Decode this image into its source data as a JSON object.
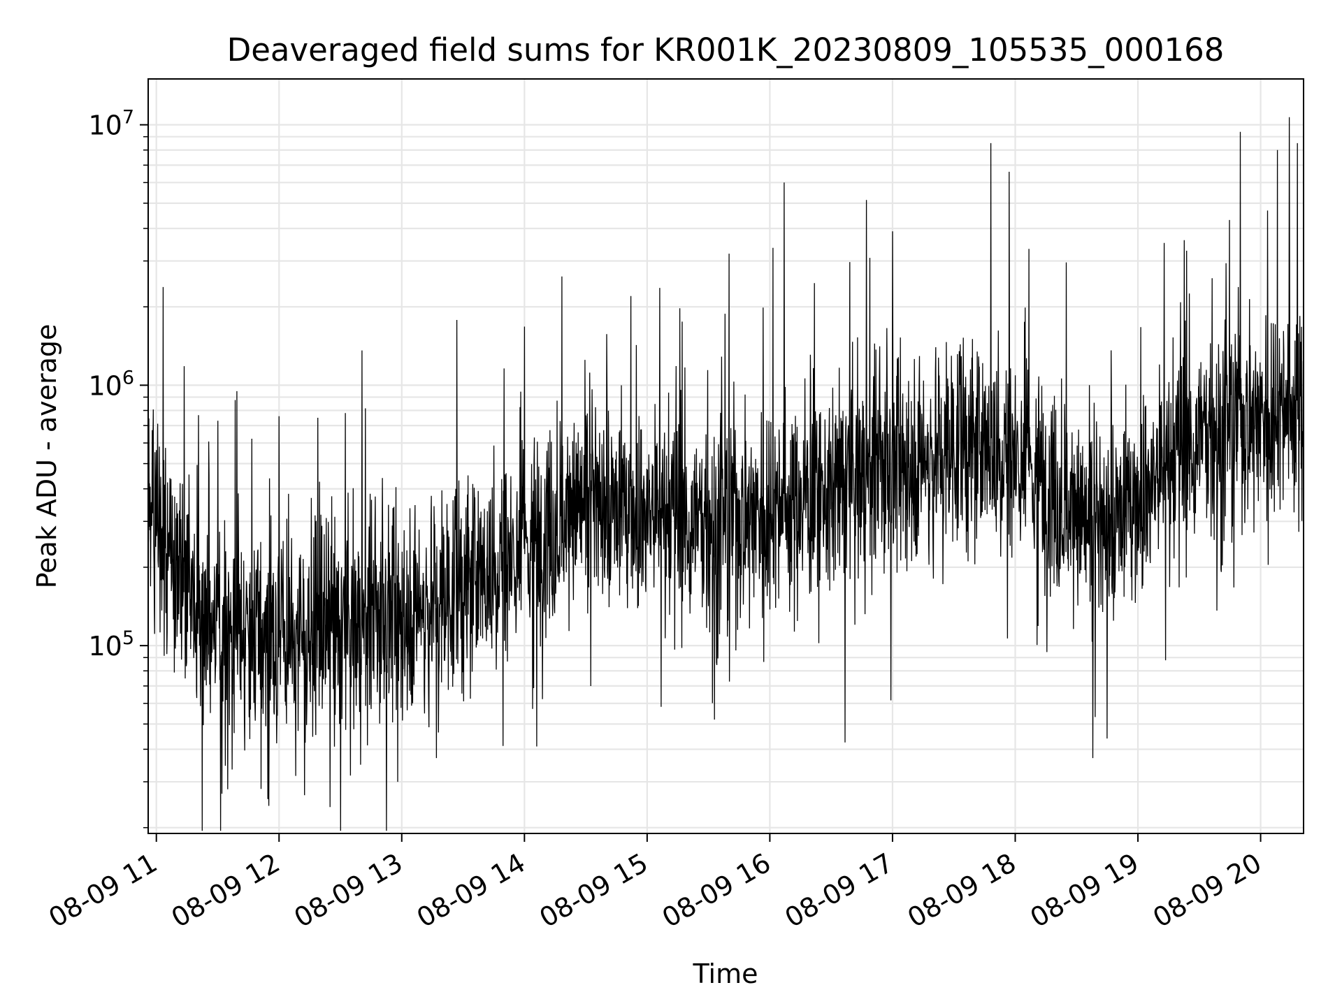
{
  "chart_data": {
    "type": "line",
    "title": "Deaveraged field sums for KR001K_20230809_105535_000168",
    "xlabel": "Time",
    "ylabel": "Peak ADU - average",
    "yscale": "log",
    "grid": true,
    "line_color": "#000000",
    "x_ticks": [
      "08-09 11",
      "08-09 12",
      "08-09 13",
      "08-09 14",
      "08-09 15",
      "08-09 16",
      "08-09 17",
      "08-09 18",
      "08-09 19",
      "08-09 20"
    ],
    "y_ticks": [
      {
        "base": "10",
        "exp": "5",
        "value": 100000
      },
      {
        "base": "10",
        "exp": "6",
        "value": 1000000
      },
      {
        "base": "10",
        "exp": "7",
        "value": 10000000
      }
    ],
    "xlim": [
      "2023-08-09 10:56",
      "2023-08-09 20:21"
    ],
    "ylim": [
      19000,
      15000000
    ],
    "series": [
      {
        "x_start": "2023-08-09 10:56",
        "x_end": "2023-08-09 20:21",
        "trend_knots": [
          {
            "t": "2023-08-09 10:56",
            "value": 270000
          },
          {
            "t": "2023-08-09 11:30",
            "value": 110000
          },
          {
            "t": "2023-08-09 12:30",
            "value": 110000
          },
          {
            "t": "2023-08-09 13:30",
            "value": 170000
          },
          {
            "t": "2023-08-09 14:30",
            "value": 350000
          },
          {
            "t": "2023-08-09 15:30",
            "value": 300000
          },
          {
            "t": "2023-08-09 16:30",
            "value": 400000
          },
          {
            "t": "2023-08-09 17:30",
            "value": 600000
          },
          {
            "t": "2023-08-09 18:00",
            "value": 550000
          },
          {
            "t": "2023-08-09 18:40",
            "value": 260000
          },
          {
            "t": "2023-08-09 19:30",
            "value": 650000
          },
          {
            "t": "2023-08-09 20:21",
            "value": 900000
          }
        ],
        "peaks": [
          {
            "t": "2023-08-09 11:30",
            "value": 730000
          },
          {
            "t": "2023-08-09 12:00",
            "value": 760000
          },
          {
            "t": "2023-08-09 12:19",
            "value": 750000
          },
          {
            "t": "2023-08-09 13:27",
            "value": 1780000
          },
          {
            "t": "2023-08-09 13:50",
            "value": 1160000
          },
          {
            "t": "2023-08-09 14:52",
            "value": 2200000
          },
          {
            "t": "2023-08-09 15:40",
            "value": 3200000
          },
          {
            "t": "2023-08-09 16:07",
            "value": 6000000
          },
          {
            "t": "2023-08-09 17:00",
            "value": 3900000
          },
          {
            "t": "2023-08-09 17:48",
            "value": 8500000
          },
          {
            "t": "2023-08-09 17:57",
            "value": 6600000
          },
          {
            "t": "2023-08-09 19:50",
            "value": 9400000
          },
          {
            "t": "2023-08-09 20:14",
            "value": 10700000
          },
          {
            "t": "2023-08-09 20:18",
            "value": 8500000
          }
        ],
        "troughs": [
          {
            "t": "2023-08-09 11:32",
            "value": 27000
          },
          {
            "t": "2023-08-09 12:25",
            "value": 24000
          },
          {
            "t": "2023-08-09 12:58",
            "value": 30000
          },
          {
            "t": "2023-08-09 13:17",
            "value": 37000
          },
          {
            "t": "2023-08-09 14:06",
            "value": 41000
          },
          {
            "t": "2023-08-09 15:33",
            "value": 52000
          },
          {
            "t": "2023-08-09 18:38",
            "value": 37000
          },
          {
            "t": "2023-08-09 18:45",
            "value": 44000
          }
        ]
      }
    ]
  }
}
